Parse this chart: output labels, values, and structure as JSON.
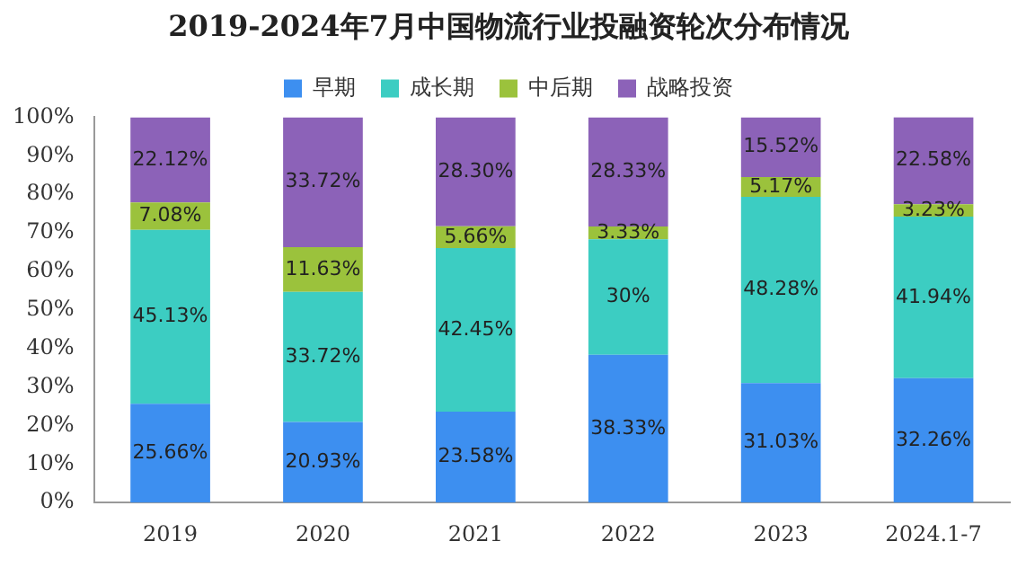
{
  "chart_data": {
    "type": "bar",
    "title": "2019-2024年7月中国物流行业投融资轮次分布情况",
    "categories": [
      "2019",
      "2020",
      "2021",
      "2022",
      "2023",
      "2024.1-7"
    ],
    "stacked": true,
    "legend": "top",
    "grid": false,
    "ylim": [
      0,
      100
    ],
    "yticks": [
      {
        "value": 0,
        "label": "0%"
      },
      {
        "value": 10,
        "label": "10%"
      },
      {
        "value": 20,
        "label": "20%"
      },
      {
        "value": 30,
        "label": "30%"
      },
      {
        "value": 40,
        "label": "40%"
      },
      {
        "value": 50,
        "label": "50%"
      },
      {
        "value": 60,
        "label": "60%"
      },
      {
        "value": 70,
        "label": "70%"
      },
      {
        "value": 80,
        "label": "80%"
      },
      {
        "value": 90,
        "label": "90%"
      },
      {
        "value": 100,
        "label": "100%"
      }
    ],
    "series": [
      {
        "name": "早期",
        "color": "#3d8ff0",
        "values": [
          25.66,
          20.93,
          23.58,
          38.33,
          31.03,
          32.26
        ],
        "value_labels": [
          "25.66%",
          "20.93%",
          "23.58%",
          "38.33%",
          "31.03%",
          "32.26%"
        ]
      },
      {
        "name": "成长期",
        "color": "#3ccdc2",
        "values": [
          45.13,
          33.72,
          42.45,
          30,
          48.28,
          41.94
        ],
        "value_labels": [
          "45.13%",
          "33.72%",
          "42.45%",
          "30%",
          "48.28%",
          "41.94%"
        ]
      },
      {
        "name": "中后期",
        "color": "#9bc23c",
        "values": [
          7.08,
          11.63,
          5.66,
          3.33,
          5.17,
          3.23
        ],
        "value_labels": [
          "7.08%",
          "11.63%",
          "5.66%",
          "3.33%",
          "5.17%",
          "3.23%"
        ]
      },
      {
        "name": "战略投资",
        "color": "#8c62b8",
        "values": [
          22.12,
          33.72,
          28.3,
          28.33,
          15.52,
          22.58
        ],
        "value_labels": [
          "22.12%",
          "33.72%",
          "28.30%",
          "28.33%",
          "15.52%",
          "22.58%"
        ]
      }
    ]
  }
}
